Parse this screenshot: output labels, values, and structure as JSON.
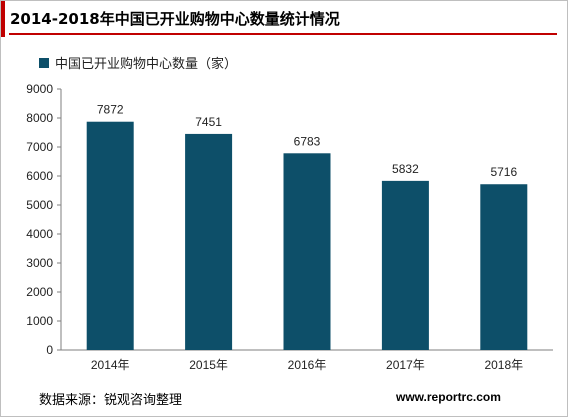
{
  "title": "2014-2018年中国已开业购物中心数量统计情况",
  "source": "数据来源：锐观咨询整理",
  "site": "www.reportrc.com",
  "colors": {
    "bar": "#0d4f69",
    "accent": "#c00000"
  },
  "chart_data": {
    "type": "bar",
    "categories": [
      "2014年",
      "2015年",
      "2016年",
      "2017年",
      "2018年"
    ],
    "series": [
      {
        "name": "中国已开业购物中心数量（家）",
        "values": [
          7872,
          7451,
          6783,
          5832,
          5716
        ]
      }
    ],
    "ylim": [
      0,
      9000
    ],
    "yticks": [
      0,
      1000,
      2000,
      3000,
      4000,
      5000,
      6000,
      7000,
      8000,
      9000
    ],
    "grid": false,
    "legend": "top-left"
  }
}
